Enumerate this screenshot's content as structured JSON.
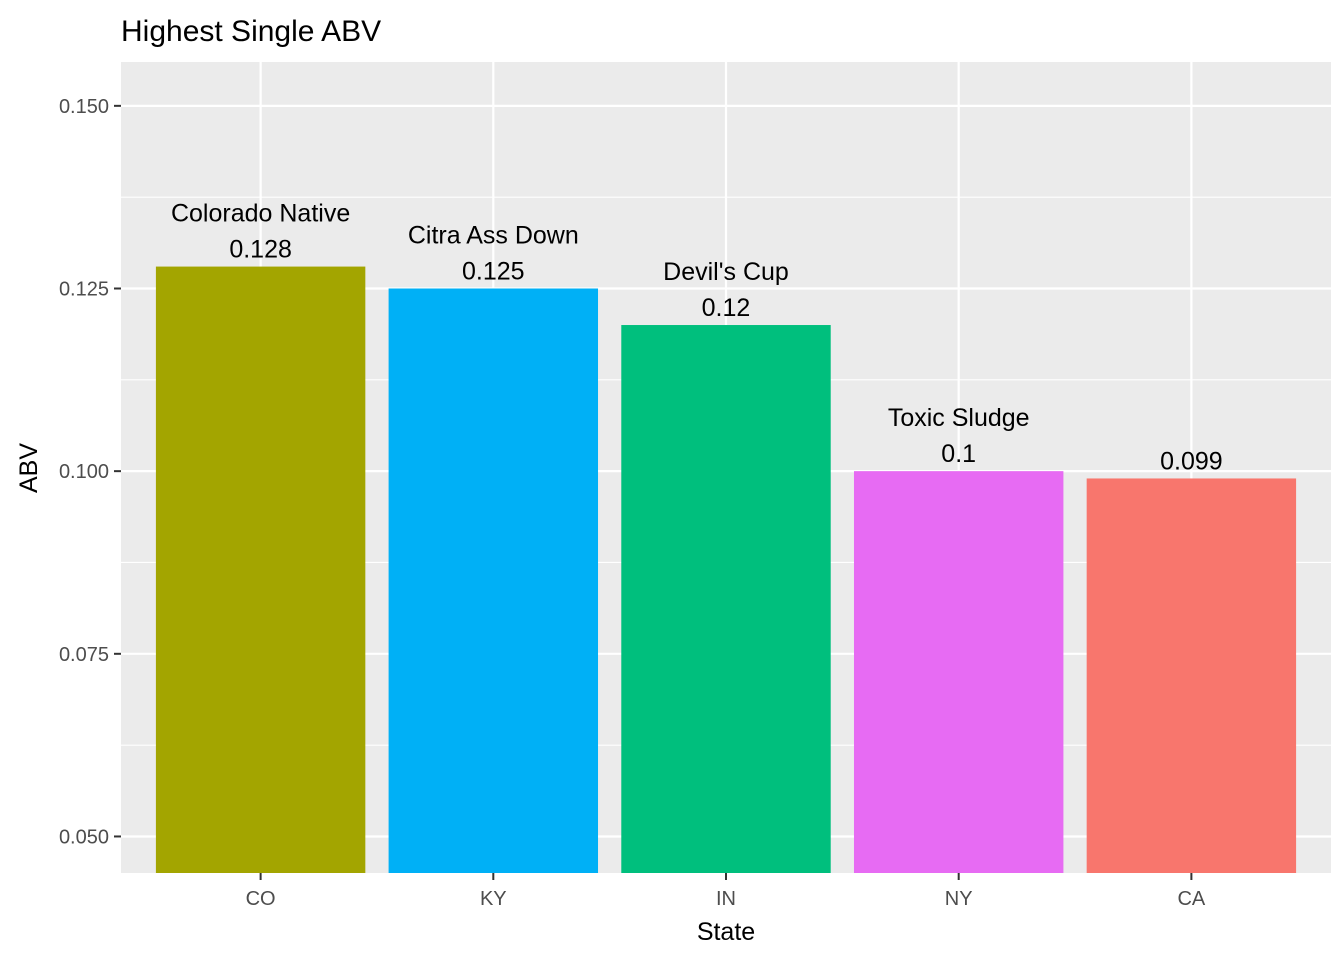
{
  "chart_data": {
    "type": "bar",
    "title": "Highest Single ABV",
    "xlabel": "State",
    "ylabel": "ABV",
    "categories": [
      "CO",
      "KY",
      "IN",
      "NY",
      "CA"
    ],
    "values": [
      0.128,
      0.125,
      0.12,
      0.1,
      0.099
    ],
    "bar_labels": [
      {
        "name": "Colorado Native",
        "value": "0.128"
      },
      {
        "name": "Citra Ass Down",
        "value": "0.125"
      },
      {
        "name": "Devil's Cup",
        "value": "0.12"
      },
      {
        "name": "Toxic Sludge",
        "value": "0.1"
      },
      {
        "name": "",
        "value": "0.099"
      }
    ],
    "colors": [
      "#A3A500",
      "#00B0F6",
      "#00BF7D",
      "#E76BF3",
      "#F8766D"
    ],
    "ylim": [
      0.045,
      0.156
    ],
    "yticks": [
      0.05,
      0.075,
      0.1,
      0.125,
      0.15
    ],
    "ytick_labels": [
      "0.050",
      "0.075",
      "0.100",
      "0.125",
      "0.150"
    ],
    "grid": true,
    "legend": "none",
    "panel_background": "#EBEBEB",
    "grid_color": "#FFFFFF"
  }
}
